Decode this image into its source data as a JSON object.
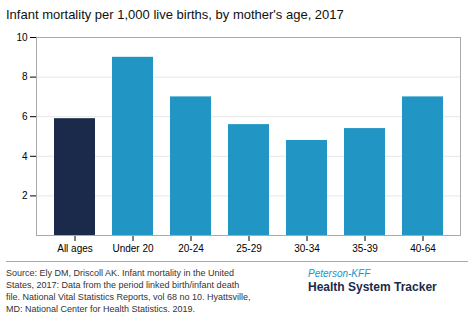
{
  "chart_data": {
    "type": "bar",
    "title": "Infant mortality per 1,000 live births, by mother's age, 2017",
    "categories": [
      "All ages",
      "Under 20",
      "20-24",
      "25-29",
      "30-34",
      "35-39",
      "40-64"
    ],
    "values": [
      5.9,
      9.0,
      7.0,
      5.6,
      4.8,
      5.4,
      7.0
    ],
    "colors": [
      "#1b2a4a",
      "#2196c4",
      "#2196c4",
      "#2196c4",
      "#2196c4",
      "#2196c4",
      "#2196c4"
    ],
    "ylim": [
      0,
      10
    ],
    "yticks": [
      2,
      4,
      6,
      8,
      10
    ],
    "grid": true,
    "caption": "Source: Ely DM, Driscoll AK. Infant mortality in the United\nStates, 2017: Data from the period linked birth/infant death\nfile. National Vital Statistics Reports, vol 68 no 10. Hyattsville,\nMD: National Center for Health Statistics. 2019.",
    "annotations": [
      {
        "text": "Peterson-KFF",
        "color": "#2196c4"
      },
      {
        "text": "Health System Tracker",
        "color": "#1b2a4a"
      }
    ]
  }
}
